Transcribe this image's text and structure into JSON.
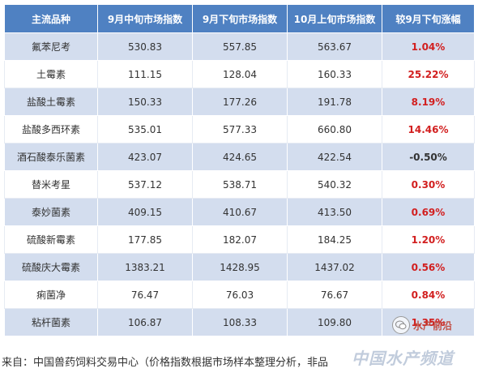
{
  "table": {
    "headers": [
      "主流品种",
      "9月中旬市场指数",
      "9月下旬市场指数",
      "10月上旬市场指数",
      "较9月下旬涨幅"
    ],
    "rows": [
      {
        "name": "氟苯尼考",
        "mid_sep": "530.83",
        "late_sep": "557.85",
        "early_oct": "563.67",
        "change": "1.04%"
      },
      {
        "name": "土霉素",
        "mid_sep": "111.15",
        "late_sep": "128.04",
        "early_oct": "160.33",
        "change": "25.22%"
      },
      {
        "name": "盐酸土霉素",
        "mid_sep": "150.33",
        "late_sep": "177.26",
        "early_oct": "191.78",
        "change": "8.19%"
      },
      {
        "name": "盐酸多西环素",
        "mid_sep": "535.01",
        "late_sep": "577.33",
        "early_oct": "660.80",
        "change": "14.46%"
      },
      {
        "name": "酒石酸泰乐菌素",
        "mid_sep": "423.07",
        "late_sep": "424.65",
        "early_oct": "422.54",
        "change": "-0.50%"
      },
      {
        "name": "替米考星",
        "mid_sep": "537.12",
        "late_sep": "538.71",
        "early_oct": "540.32",
        "change": "0.30%"
      },
      {
        "name": "泰妙菌素",
        "mid_sep": "409.15",
        "late_sep": "410.67",
        "early_oct": "413.50",
        "change": "0.69%"
      },
      {
        "name": "硫酸新霉素",
        "mid_sep": "177.85",
        "late_sep": "182.07",
        "early_oct": "184.25",
        "change": "1.20%"
      },
      {
        "name": "硫酸庆大霉素",
        "mid_sep": "1383.21",
        "late_sep": "1428.95",
        "early_oct": "1437.02",
        "change": "0.56%"
      },
      {
        "name": "痢菌净",
        "mid_sep": "76.47",
        "late_sep": "76.03",
        "early_oct": "76.67",
        "change": "0.84%"
      },
      {
        "name": "粘杆菌素",
        "mid_sep": "106.87",
        "late_sep": "108.33",
        "early_oct": "109.80",
        "change": "1.35%"
      }
    ]
  },
  "source": {
    "label": "来自：",
    "text": "中国兽药饲料交易中心（价格指数根据市场样本整理分析，非品"
  },
  "watermark": {
    "icon": "wechat-icon",
    "text": "水产前沿"
  },
  "site_mark": {
    "text": "中国水产频道"
  },
  "colors": {
    "header_bg": "#4f81c2",
    "odd_row_bg": "#d3ddee",
    "rise_color": "#d21f1f"
  }
}
